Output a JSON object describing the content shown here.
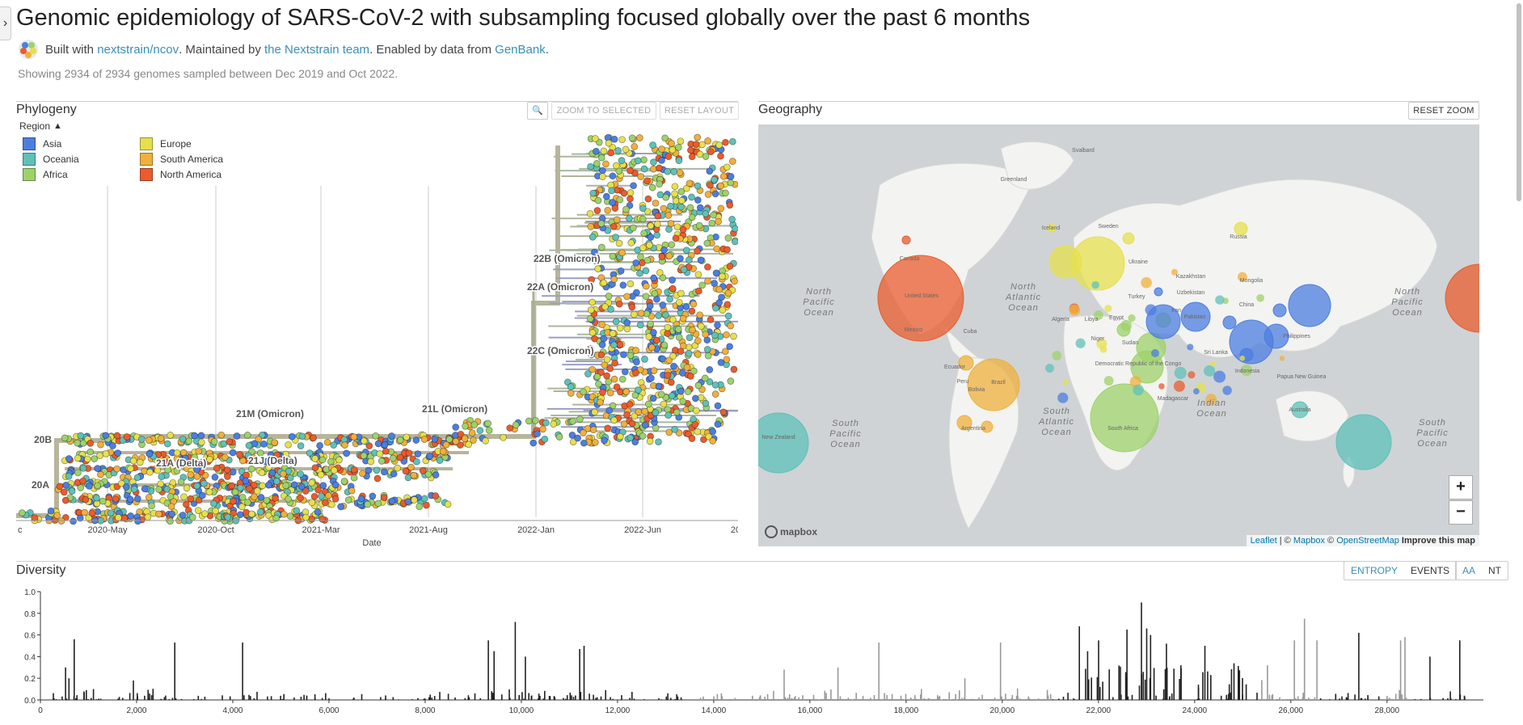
{
  "header": {
    "title": "Genomic epidemiology of SARS-CoV-2 with subsampling focused globally over the past 6 months",
    "byline": {
      "built_with": "Built with",
      "build_link": "nextstrain/ncov",
      "maintained_by": ". Maintained by",
      "maintainer_link": "the Nextstrain team",
      "enabled_by": ". Enabled by data from",
      "data_link": "GenBank",
      "end": "."
    },
    "subtitle": "Showing 2934 of 2934 genomes sampled between Dec 2019 and Oct 2022."
  },
  "phylogeny": {
    "title": "Phylogeny",
    "zoom_selected": "ZOOM TO SELECTED",
    "reset_layout": "RESET LAYOUT",
    "legend_title": "Region",
    "legend": [
      {
        "label": "Asia",
        "color": "#4c7ee0"
      },
      {
        "label": "Oceania",
        "color": "#5fc1b8"
      },
      {
        "label": "Africa",
        "color": "#9dd26a"
      },
      {
        "label": "Europe",
        "color": "#e6e04d"
      },
      {
        "label": "South America",
        "color": "#f0b03c"
      },
      {
        "label": "North America",
        "color": "#ea5c2d"
      }
    ],
    "xaxis_label": "Date",
    "xticks": [
      "c",
      "2020-May",
      "2020-Oct",
      "2021-Mar",
      "2021-Aug",
      "2022-Jan",
      "2022-Jun",
      "20"
    ],
    "clade_labels": [
      "22B (Omicron)",
      "22A (Omicron)",
      "22C (Omicron)",
      "21M (Omicron)",
      "21L (Omicron)",
      "20B",
      "21A (Delta)",
      "21J (Delta)",
      "20A"
    ]
  },
  "geography": {
    "title": "Geography",
    "reset_zoom": "RESET ZOOM",
    "zoom_in": "+",
    "zoom_out": "−",
    "attribution": {
      "leaflet": "Leaflet",
      "sep1": " | © ",
      "mapbox": "Mapbox",
      "sep2": " © ",
      "osm": "OpenStreetMap",
      "improve": "Improve this map"
    },
    "mapbox_logo": "mapbox",
    "ocean_labels": [
      "North Pacific Ocean",
      "North Atlantic Ocean",
      "South Pacific Ocean",
      "South Atlantic Ocean",
      "Indian Ocean",
      "North Pacific Ocean",
      "South Pacific Ocean"
    ],
    "place_labels": [
      "Svalbard",
      "Greenland",
      "Iceland",
      "Sweden",
      "Russia",
      "Canada",
      "United States",
      "Mexico",
      "Cuba",
      "Algeria",
      "Libya",
      "Egypt",
      "Niger",
      "Sudan",
      "Turkey",
      "Iran",
      "Pakistan",
      "Kazakhstan",
      "Mongolia",
      "Uzbekistan",
      "China",
      "Sri Lanka",
      "Indonesia",
      "Papua New Guinea",
      "Australia",
      "New Zealand",
      "Brazil",
      "Peru",
      "Bolivia",
      "Ecuador",
      "Argentina",
      "Madagascar",
      "South Africa",
      "Democratic Republic of the Congo",
      "Philippines",
      "Ukraine"
    ]
  },
  "diversity": {
    "title": "Diversity",
    "entropy": "ENTROPY",
    "events": "EVENTS",
    "aa": "AA",
    "nt": "NT",
    "yticks": [
      "1.0",
      "0.8",
      "0.6",
      "0.4",
      "0.2",
      "0.0"
    ],
    "xticks": [
      "0",
      "2,000",
      "4,000",
      "6,000",
      "8,000",
      "10,000",
      "12,000",
      "14,000",
      "16,000",
      "18,000",
      "20,000",
      "22,000",
      "24,000",
      "26,000",
      "28,000"
    ],
    "ylim": [
      0,
      1.0
    ],
    "xlim": [
      0,
      29903
    ]
  }
}
